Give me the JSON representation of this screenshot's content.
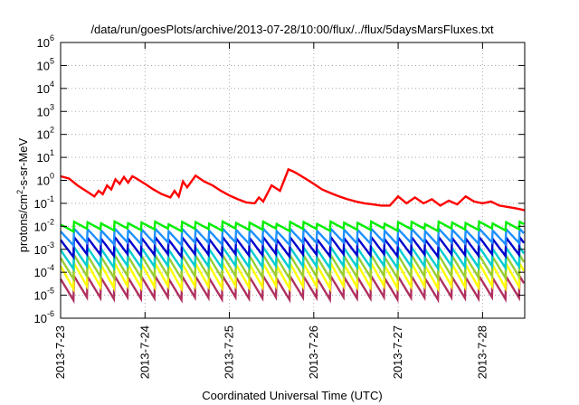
{
  "chart_data": {
    "type": "line",
    "title": "/data/run/goesPlots/archive/2013-07-28/10:00/flux/../flux/5daysMarsFluxes.txt",
    "xlabel": "Coordinated Universal Time (UTC)",
    "ylabel": {
      "pre": "protons/cm",
      "sup": "2",
      "post": "-s-sr-MeV"
    },
    "yscale": "log",
    "ylim": [
      1e-06,
      1000000.0
    ],
    "xlim": [
      0,
      5.5
    ],
    "x_unit": "days since first tick",
    "x_ticks": [
      {
        "x": 0,
        "label": "2013-7-23"
      },
      {
        "x": 1,
        "label": "2013-7-24"
      },
      {
        "x": 2,
        "label": "2013-7-25"
      },
      {
        "x": 3,
        "label": "2013-7-26"
      },
      {
        "x": 4,
        "label": "2013-7-27"
      },
      {
        "x": 5,
        "label": "2013-7-28"
      }
    ],
    "y_ticks": [
      {
        "exp": -6,
        "label": "10",
        "sup": "-6"
      },
      {
        "exp": -5,
        "label": "10",
        "sup": "-5"
      },
      {
        "exp": -4,
        "label": "10",
        "sup": "-4"
      },
      {
        "exp": -3,
        "label": "10",
        "sup": "-3"
      },
      {
        "exp": -2,
        "label": "10",
        "sup": "-2"
      },
      {
        "exp": -1,
        "label": "10",
        "sup": "-1"
      },
      {
        "exp": 0,
        "label": "10",
        "sup": "0"
      },
      {
        "exp": 1,
        "label": "10",
        "sup": "1"
      },
      {
        "exp": 2,
        "label": "10",
        "sup": "2"
      },
      {
        "exp": 3,
        "label": "10",
        "sup": "3"
      },
      {
        "exp": 4,
        "label": "10",
        "sup": "4"
      },
      {
        "exp": 5,
        "label": "10",
        "sup": "5"
      },
      {
        "exp": 6,
        "label": "10",
        "sup": "6"
      }
    ],
    "grid": true,
    "series": [
      {
        "color": "#ff0000",
        "x": [
          0,
          0.1,
          0.2,
          0.3,
          0.4,
          0.45,
          0.5,
          0.55,
          0.6,
          0.65,
          0.7,
          0.75,
          0.8,
          0.85,
          0.9,
          1.0,
          1.1,
          1.2,
          1.3,
          1.35,
          1.4,
          1.45,
          1.5,
          1.6,
          1.7,
          1.8,
          1.9,
          2.0,
          2.1,
          2.2,
          2.3,
          2.35,
          2.4,
          2.5,
          2.6,
          2.7,
          2.75,
          2.8,
          2.9,
          3.0,
          3.1,
          3.2,
          3.3,
          3.4,
          3.5,
          3.6,
          3.7,
          3.8,
          3.9,
          4.0,
          4.1,
          4.2,
          4.3,
          4.4,
          4.5,
          4.6,
          4.7,
          4.8,
          4.9,
          5.0,
          5.1,
          5.2,
          5.3,
          5.4,
          5.5
        ],
        "values": [
          1.5,
          1.2,
          0.6,
          0.35,
          0.2,
          0.35,
          0.25,
          0.6,
          0.4,
          1.1,
          0.7,
          1.4,
          0.8,
          1.5,
          1.2,
          0.7,
          0.4,
          0.25,
          0.18,
          0.35,
          0.2,
          0.9,
          0.5,
          1.6,
          0.9,
          0.6,
          0.35,
          0.22,
          0.15,
          0.11,
          0.1,
          0.18,
          0.12,
          0.6,
          0.35,
          3.0,
          2.5,
          2.0,
          1.2,
          0.7,
          0.4,
          0.28,
          0.2,
          0.15,
          0.12,
          0.1,
          0.09,
          0.08,
          0.08,
          0.2,
          0.1,
          0.18,
          0.1,
          0.15,
          0.08,
          0.13,
          0.09,
          0.2,
          0.12,
          0.1,
          0.12,
          0.08,
          0.07,
          0.06,
          0.05
        ]
      },
      {
        "color": "#00ee00",
        "base": 0.014,
        "depth": 0.5
      },
      {
        "color": "#1e90ff",
        "base": 0.007,
        "depth": 0.25
      },
      {
        "color": "#0000cd",
        "base": 0.003,
        "depth": 0.18
      },
      {
        "color": "#00ced1",
        "base": 0.0011,
        "depth": 0.15
      },
      {
        "color": "#9acd32",
        "base": 0.0005,
        "depth": 0.12
      },
      {
        "color": "#ffff00",
        "base": 0.00022,
        "depth": 0.1
      },
      {
        "color": "#b03060",
        "base": 6e-05,
        "depth": 0.12
      }
    ],
    "pulse_period": 0.16,
    "line_width": 2.4
  }
}
